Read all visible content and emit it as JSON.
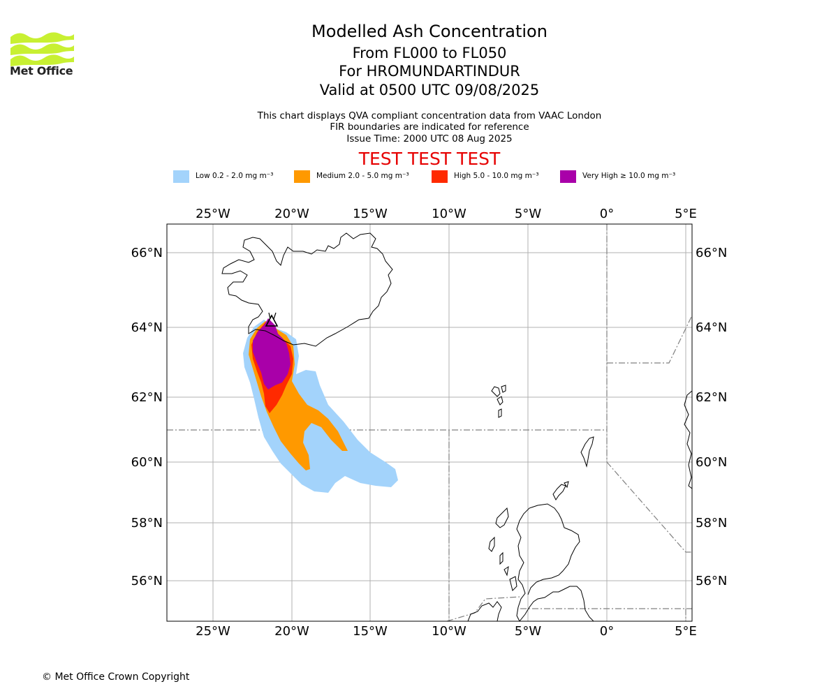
{
  "header": {
    "logo_text": "Met Office",
    "title_lines": [
      "Modelled Ash Concentration",
      "From FL000 to FL050",
      "For HROMUNDARTINDUR",
      "Valid at 0500 UTC 09/08/2025"
    ],
    "subtitle_lines": [
      "This chart displays QVA compliant concentration data from VAAC London",
      "FIR boundaries are indicated for reference",
      "Issue Time: 2000 UTC 08 Aug 2025"
    ],
    "test_banner": "TEST TEST TEST"
  },
  "legend": [
    {
      "label": "Low 0.2 - 2.0 mg m⁻³",
      "color": "#a3d3fb"
    },
    {
      "label": "Medium 2.0 - 5.0 mg m⁻³",
      "color": "#ff9900"
    },
    {
      "label": "High 5.0 - 10.0 mg m⁻³",
      "color": "#ff2a00"
    },
    {
      "label": "Very High  ≥  10.0 mg m⁻³",
      "color": "#a900a9"
    }
  ],
  "map": {
    "lon_ticks": [
      "25°W",
      "20°W",
      "15°W",
      "10°W",
      "5°W",
      "0°",
      "5°E"
    ],
    "lat_ticks": [
      "66°N",
      "64°N",
      "62°N",
      "60°N",
      "58°N",
      "56°N"
    ],
    "volcano_icon": "volcano-triangle-icon"
  },
  "footer": {
    "copyright": "© Met Office Crown Copyright"
  }
}
